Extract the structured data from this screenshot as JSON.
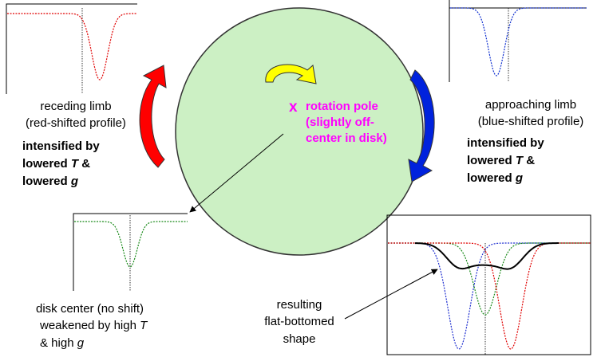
{
  "receding": {
    "lines": [
      "receding limb",
      "(red-shifted  profile)"
    ],
    "bold": [
      [
        "intensified by"
      ],
      [
        "lowered ",
        "T",
        " &"
      ],
      [
        "lowered ",
        "g"
      ]
    ]
  },
  "approaching": {
    "lines": [
      "approaching limb",
      "(blue-shifted  profile)"
    ],
    "bold": [
      [
        "intensified by"
      ],
      [
        "lowered ",
        "T",
        " &"
      ],
      [
        "lowered ",
        "g"
      ]
    ]
  },
  "pole": {
    "marker": "x",
    "lines": [
      "rotation pole",
      "(slightly off-",
      "center in disk)"
    ]
  },
  "center": {
    "lines": [
      [
        "disk center (no shift)"
      ],
      [
        "weakened by high ",
        "T"
      ],
      [
        "& high ",
        "g"
      ]
    ]
  },
  "result": {
    "lines": [
      "resulting",
      "flat-bottomed",
      "shape"
    ]
  }
}
